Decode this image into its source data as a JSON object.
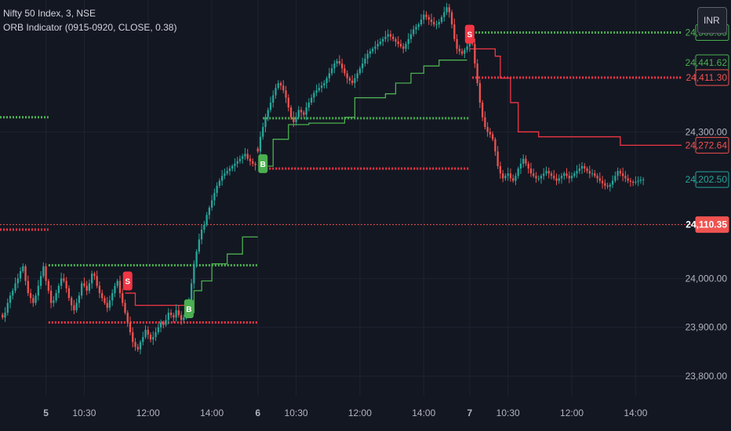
{
  "legend": {
    "symbol": "Nifty 50 Index, 3, NSE",
    "indicator": "ORB Indicator (0915-0920, CLOSE, 0.38)"
  },
  "currency_button": "INR",
  "colors": {
    "background": "#131722",
    "grid": "#1f2330",
    "axis_text": "#b2b5be",
    "up": "#26a69a",
    "down": "#ef5350",
    "orb_high": "#4caf50",
    "orb_low": "#f23645",
    "signal_sell": "#f23645",
    "signal_buy": "#4caf50"
  },
  "chart_data": {
    "type": "candlestick",
    "price_axis": {
      "ticks": [
        {
          "value": 24300,
          "label": "24,300.00"
        },
        {
          "value": 24000,
          "label": "24,000.00"
        },
        {
          "value": 23900,
          "label": "23,900.00"
        },
        {
          "value": 23800,
          "label": "23,800.00"
        }
      ],
      "range": [
        23760,
        24570
      ]
    },
    "time_axis": {
      "ticks": [
        {
          "t": 17,
          "label": "5",
          "bold": true
        },
        {
          "t": 32,
          "label": "10:30"
        },
        {
          "t": 57,
          "label": "12:00"
        },
        {
          "t": 82,
          "label": "14:00"
        },
        {
          "t": 100,
          "label": "6",
          "bold": true
        },
        {
          "t": 115,
          "label": "10:30"
        },
        {
          "t": 140,
          "label": "12:00"
        },
        {
          "t": 165,
          "label": "14:00"
        },
        {
          "t": 183,
          "label": "7",
          "bold": true
        },
        {
          "t": 198,
          "label": "10:30"
        },
        {
          "t": 223,
          "label": "12:00"
        },
        {
          "t": 248,
          "label": "14:00"
        }
      ],
      "range": [
        -1,
        270
      ]
    },
    "price_labels": [
      {
        "value": 24503.35,
        "label": "24,503.35",
        "style": "green-outline"
      },
      {
        "value": 24441.62,
        "label": "24,441.62",
        "style": "green-outline"
      },
      {
        "value": 24411.3,
        "label": "24,411.30",
        "style": "red-outline"
      },
      {
        "value": 24272.64,
        "label": "24,272.64",
        "style": "red-outline"
      },
      {
        "value": 24202.5,
        "label": "24,202.50",
        "style": "teal-outline"
      },
      {
        "value": 24110.35,
        "label": "24,110.35",
        "style": "red-solid"
      }
    ],
    "current_price_line": 24110.35,
    "orb_levels": [
      {
        "from": -1,
        "to": 18,
        "value": 24330,
        "side": "high"
      },
      {
        "from": -1,
        "to": 18,
        "value": 24100,
        "side": "low"
      },
      {
        "from": 18,
        "to": 100,
        "value": 24027,
        "side": "high"
      },
      {
        "from": 18,
        "to": 100,
        "value": 23910,
        "side": "low"
      },
      {
        "from": 102,
        "to": 183,
        "value": 24328,
        "side": "high"
      },
      {
        "from": 102,
        "to": 183,
        "value": 24225,
        "side": "low"
      },
      {
        "from": 184,
        "to": 266,
        "value": 24503.35,
        "side": "high"
      },
      {
        "from": 184,
        "to": 266,
        "value": 24411.3,
        "side": "low"
      }
    ],
    "trailing_stops": [
      {
        "side": "short",
        "points": [
          [
            48,
            23970
          ],
          [
            52,
            23945
          ],
          [
            74,
            23945
          ]
        ]
      },
      {
        "side": "long",
        "points": [
          [
            73,
            23930
          ],
          [
            75,
            23975
          ],
          [
            78,
            23995
          ],
          [
            82,
            24030
          ],
          [
            88,
            24050
          ],
          [
            94,
            24085
          ],
          [
            100,
            24085
          ]
        ]
      },
      {
        "side": "long",
        "points": [
          [
            104,
            24230
          ],
          [
            106,
            24285
          ],
          [
            112,
            24315
          ],
          [
            120,
            24318
          ],
          [
            134,
            24330
          ],
          [
            138,
            24370
          ],
          [
            150,
            24378
          ],
          [
            154,
            24400
          ],
          [
            160,
            24420
          ],
          [
            165,
            24435
          ],
          [
            171,
            24447
          ],
          [
            182,
            24447
          ]
        ]
      },
      {
        "side": "short",
        "points": [
          [
            183,
            24470
          ],
          [
            193,
            24455
          ],
          [
            195,
            24410
          ],
          [
            199,
            24360
          ],
          [
            202,
            24300
          ],
          [
            210,
            24290
          ],
          [
            240,
            24290
          ],
          [
            242,
            24272.64
          ],
          [
            266,
            24272.64
          ]
        ]
      }
    ],
    "signals": [
      {
        "t": 49,
        "value": 23995,
        "label": "S",
        "side": "sell"
      },
      {
        "t": 73,
        "value": 23938,
        "label": "B",
        "side": "buy"
      },
      {
        "t": 102,
        "value": 24235,
        "label": "B",
        "side": "buy"
      },
      {
        "t": 183,
        "value": 24500,
        "label": "S",
        "side": "sell"
      }
    ],
    "series": [
      {
        "day": "5",
        "start": 0,
        "closes": [
          23920,
          23930,
          23950,
          23965,
          23975,
          23990,
          24000,
          24015,
          24025,
          23995,
          23970,
          23960,
          23950,
          23965,
          23985,
          24005,
          24025,
          23995,
          23975,
          23950,
          23955,
          23970,
          23985,
          24000,
          23995,
          23980,
          23960,
          23945,
          23935,
          23950,
          23965,
          23990,
          23985,
          23975,
          23990,
          24010,
          24005,
          23985,
          23970,
          23960,
          23950,
          23940,
          23955,
          23970,
          23985,
          23995,
          23970,
          23950,
          23930,
          23910,
          23890,
          23870,
          23860,
          23855,
          23870,
          23880,
          23895,
          23885,
          23875,
          23880,
          23890,
          23900,
          23910,
          23905,
          23915,
          23930,
          23925,
          23920,
          23935,
          23925,
          23915,
          23920,
          23930,
          23950,
          23990,
          24030,
          24055,
          24080,
          24100,
          24110,
          24130,
          24145,
          24160,
          24175,
          24190,
          24200,
          24210,
          24215,
          24220,
          24225,
          24230,
          24235,
          24240,
          24245,
          24250,
          24255,
          24245,
          24240,
          24235,
          24232
        ]
      },
      {
        "day": "6",
        "start": 100,
        "closes": [
          24260,
          24290,
          24310,
          24330,
          24345,
          24360,
          24375,
          24390,
          24400,
          24395,
          24385,
          24370,
          24350,
          24330,
          24320,
          24330,
          24345,
          24340,
          24335,
          24350,
          24360,
          24370,
          24380,
          24385,
          24390,
          24395,
          24400,
          24410,
          24420,
          24430,
          24440,
          24445,
          24440,
          24430,
          24420,
          24410,
          24405,
          24400,
          24410,
          24420,
          24430,
          24440,
          24450,
          24460,
          24465,
          24470,
          24475,
          24480,
          24485,
          24490,
          24495,
          24500,
          24495,
          24490,
          24485,
          24480,
          24475,
          24470,
          24480,
          24490,
          24500,
          24510,
          24515,
          24520,
          24530,
          24540,
          24535,
          24530,
          24525,
          24520,
          24520,
          24525,
          24535,
          24545,
          24555,
          24545,
          24520,
          24490,
          24470,
          24465,
          24460,
          24468,
          24475,
          24485
        ]
      },
      {
        "day": "7",
        "start": 184,
        "closes": [
          24480,
          24440,
          24400,
          24360,
          24330,
          24310,
          24300,
          24295,
          24285,
          24260,
          24230,
          24215,
          24205,
          24210,
          24215,
          24205,
          24200,
          24210,
          24225,
          24235,
          24245,
          24235,
          24225,
          24215,
          24210,
          24205,
          24205,
          24210,
          24215,
          24220,
          24215,
          24210,
          24205,
          24200,
          24205,
          24210,
          24215,
          24210,
          24205,
          24210,
          24215,
          24220,
          24225,
          24230,
          24225,
          24220,
          24215,
          24215,
          24210,
          24205,
          24200,
          24195,
          24190,
          24188,
          24192,
          24200,
          24210,
          24220,
          24215,
          24210,
          24205,
          24200,
          24198,
          24196,
          24198,
          24200,
          24202,
          24202.5
        ]
      }
    ]
  }
}
